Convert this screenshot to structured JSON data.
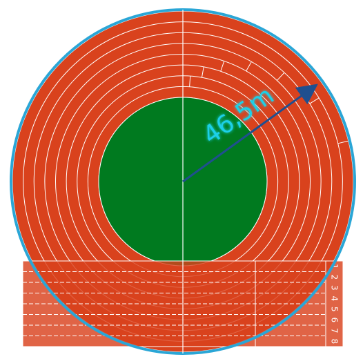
{
  "distance_label": "46,5m",
  "lanes": [
    "1",
    "2",
    "3",
    "4",
    "5",
    "6",
    "7",
    "8"
  ]
}
